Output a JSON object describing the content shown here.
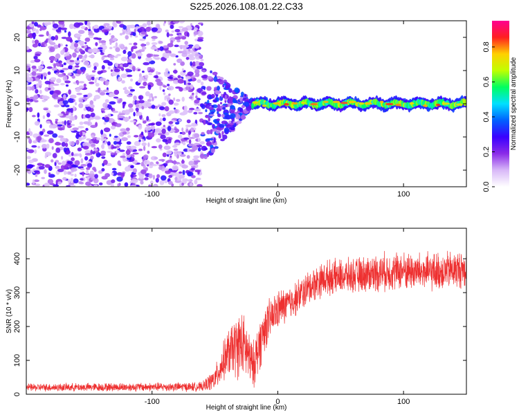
{
  "title": "S225.2026.108.01.22.C33",
  "chart_data": [
    {
      "id": "spectrogram",
      "type": "heatmap",
      "xlabel": "Height of straight line (km)",
      "ylabel": "Frequency (Hz)",
      "xlim": [
        -200,
        150
      ],
      "ylim": [
        -25,
        25
      ],
      "xticks": [
        -100,
        0,
        100
      ],
      "yticks": [
        -20,
        -10,
        0,
        10,
        20
      ],
      "colorbar": {
        "label": "Normalized spectral amplitude",
        "range": [
          0,
          0.95
        ],
        "ticks": [
          0.0,
          0.2,
          0.4,
          0.6,
          0.8
        ],
        "colormap": [
          "#ffffff",
          "#d8b8f8",
          "#8b2be8",
          "#3a00ff",
          "#0060ff",
          "#00e0ff",
          "#00ff60",
          "#c0ff00",
          "#ffd000",
          "#ff2020",
          "#ff0090"
        ]
      },
      "features": {
        "noise_region_x": [
          -200,
          -60
        ],
        "transition_x": [
          -60,
          -20
        ],
        "signal_band_x": [
          -20,
          150
        ],
        "signal_band_freq": 0,
        "signal_band_peak_amplitude": 0.9
      }
    },
    {
      "id": "snr",
      "type": "line",
      "xlabel": "Height of straight line (km)",
      "ylabel": "SNR (10 * v/v)",
      "xlim": [
        -200,
        150
      ],
      "ylim": [
        0,
        490
      ],
      "xticks": [
        -100,
        0,
        100
      ],
      "yticks": [
        0,
        100,
        200,
        300,
        400
      ],
      "series": [
        {
          "name": "SNR",
          "color": "#ee3030",
          "envelope_x": [
            -200,
            -60,
            -50,
            -40,
            -30,
            -25,
            -20,
            -15,
            -10,
            0,
            10,
            20,
            30,
            40,
            60,
            80,
            100,
            120,
            150
          ],
          "envelope_median": [
            20,
            22,
            45,
            120,
            150,
            130,
            80,
            140,
            200,
            250,
            270,
            300,
            330,
            345,
            350,
            360,
            365,
            360,
            370
          ],
          "envelope_spread": [
            10,
            12,
            30,
            60,
            90,
            80,
            60,
            70,
            60,
            50,
            45,
            45,
            45,
            45,
            45,
            50,
            50,
            50,
            50
          ]
        }
      ]
    }
  ]
}
